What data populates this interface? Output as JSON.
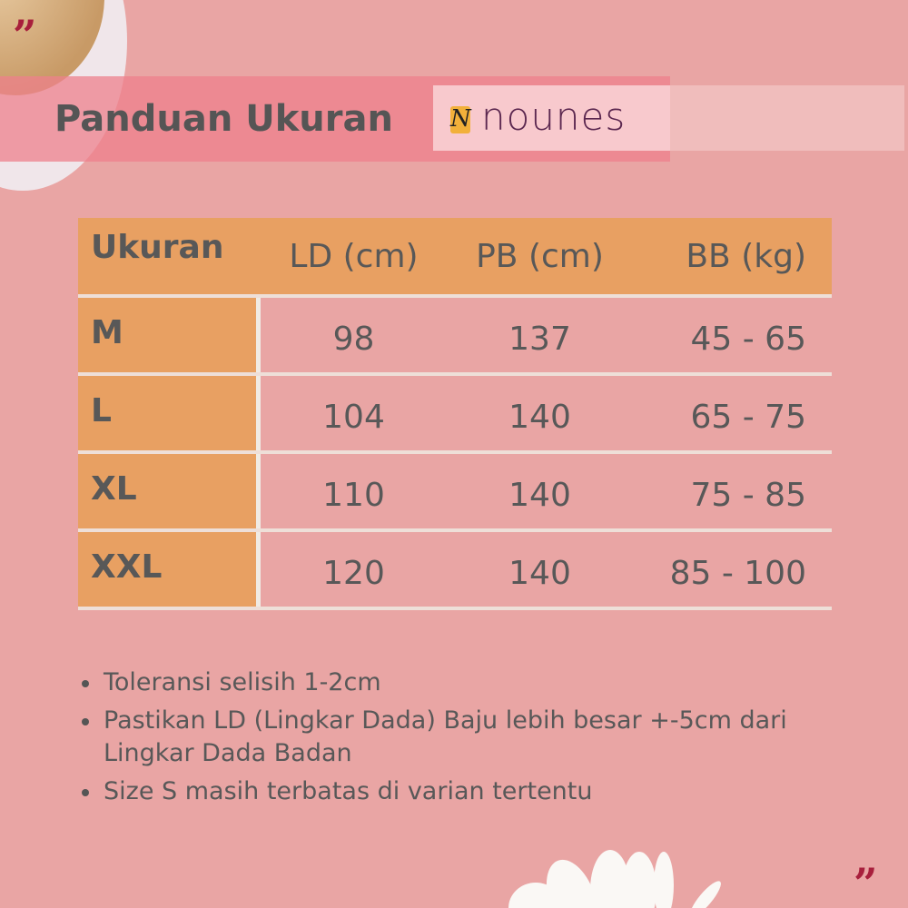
{
  "header": {
    "title": "Panduan Ukuran",
    "brand": "nounes",
    "brand_mark": "N"
  },
  "table": {
    "columns": [
      "Ukuran",
      "LD (cm)",
      "PB (cm)",
      "BB (kg)"
    ],
    "rows": [
      {
        "size": "M",
        "ld": "98",
        "pb": "137",
        "bb": "45 - 65"
      },
      {
        "size": "L",
        "ld": "104",
        "pb": "140",
        "bb": "65 - 75"
      },
      {
        "size": "XL",
        "ld": "110",
        "pb": "140",
        "bb": "75 - 85"
      },
      {
        "size": "XXL",
        "ld": "120",
        "pb": "140",
        "bb": "85 - 100"
      }
    ]
  },
  "notes": [
    "Toleransi selisih 1-2cm",
    "Pastikan LD (Lingkar Dada) Baju lebih besar +-5cm dari Lingkar Dada Badan",
    "Size S masih terbatas di varian tertentu"
  ],
  "decor": {
    "quote_mark": "”",
    "quote_color": "#a81f3c",
    "accent_color": "#e8a062",
    "background_color": "#e9a5a4"
  }
}
